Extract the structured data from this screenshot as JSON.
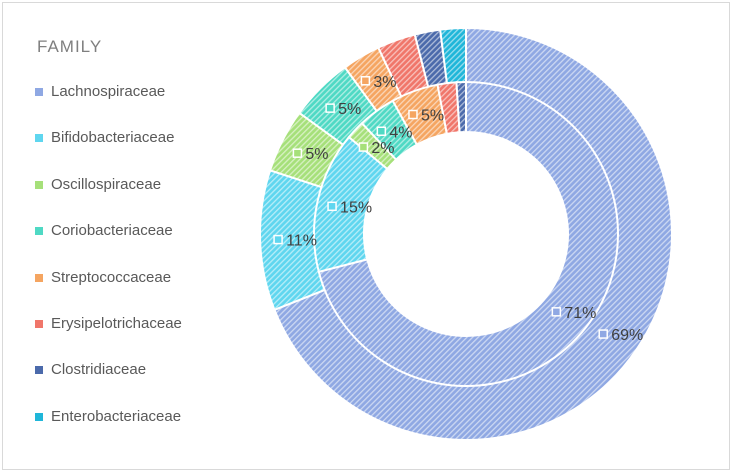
{
  "legend": {
    "title": "FAMILY"
  },
  "colors": {
    "Lachnospiraceae": "#8fa8e3",
    "Bifidobacteriaceae": "#5fd6ef",
    "Oscillospiraceae": "#a6e07a",
    "Coriobacteriaceae": "#4fd9c4",
    "Streptococcaceae": "#f5a561",
    "Erysipelotrichaceae": "#f0766a",
    "Clostridiaceae": "#4b6aab",
    "Enterobacteriaceae": "#1fb6d9"
  },
  "chart_data": {
    "type": "pie",
    "variant": "nested-doughnut",
    "legend_title": "FAMILY",
    "legend_position": "left",
    "pattern": "diagonal hatching",
    "categories": [
      "Lachnospiraceae",
      "Bifidobacteriaceae",
      "Oscillospiraceae",
      "Coriobacteriaceae",
      "Streptococcaceae",
      "Erysipelotrichaceae",
      "Clostridiaceae",
      "Enterobacteriaceae"
    ],
    "series": [
      {
        "ring": "outer",
        "values": [
          69,
          11,
          5,
          5,
          3,
          3,
          2,
          2
        ],
        "labels": [
          "69%",
          "11%",
          "5%",
          "5%",
          "3%",
          "",
          "",
          ""
        ]
      },
      {
        "ring": "inner",
        "values": [
          71,
          15,
          2,
          4,
          5,
          2,
          1,
          0
        ],
        "labels": [
          "71%",
          "15%",
          "2%",
          "4%",
          "5%",
          "",
          "",
          ""
        ]
      }
    ]
  }
}
